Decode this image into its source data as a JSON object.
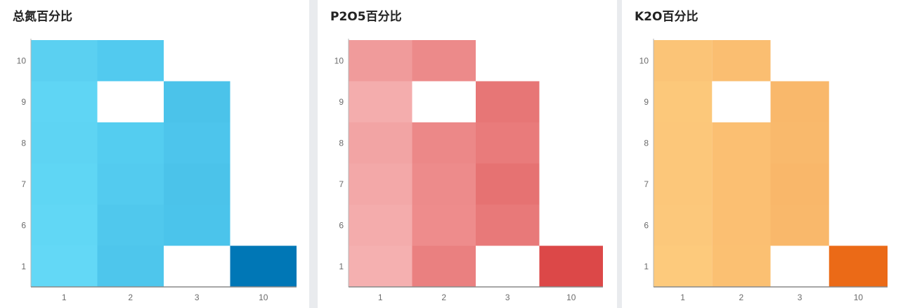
{
  "panels": [
    {
      "title": "总氮百分比",
      "accent": "#49c4ea",
      "chart_data": {
        "type": "heatmap",
        "title": "总氮百分比",
        "x_categories": [
          "1",
          "2",
          "3",
          "10"
        ],
        "y_categories": [
          "1",
          "6",
          "7",
          "8",
          "9",
          "10"
        ],
        "grid": false,
        "cells": [
          {
            "x": "1",
            "y": "10",
            "color": "#5bd0f1"
          },
          {
            "x": "2",
            "y": "10",
            "color": "#52caef"
          },
          {
            "x": "1",
            "y": "9",
            "color": "#5fd5f4"
          },
          {
            "x": "3",
            "y": "9",
            "color": "#4bc3ea"
          },
          {
            "x": "1",
            "y": "8",
            "color": "#5ed4f3"
          },
          {
            "x": "2",
            "y": "8",
            "color": "#54cdf0"
          },
          {
            "x": "3",
            "y": "8",
            "color": "#4dc5ec"
          },
          {
            "x": "1",
            "y": "7",
            "color": "#5fd6f4"
          },
          {
            "x": "2",
            "y": "7",
            "color": "#53cbef"
          },
          {
            "x": "3",
            "y": "7",
            "color": "#4bc3ea"
          },
          {
            "x": "1",
            "y": "6",
            "color": "#61d7f5"
          },
          {
            "x": "2",
            "y": "6",
            "color": "#50c8ed"
          },
          {
            "x": "3",
            "y": "6",
            "color": "#4bc4eb"
          },
          {
            "x": "1",
            "y": "1",
            "color": "#63d8f6"
          },
          {
            "x": "2",
            "y": "1",
            "color": "#4ec6ec"
          },
          {
            "x": "10",
            "y": "1",
            "color": "#0077b6"
          }
        ]
      }
    },
    {
      "title": "P2O5百分比",
      "accent": "#e56d6d",
      "chart_data": {
        "type": "heatmap",
        "title": "P2O5百分比",
        "x_categories": [
          "1",
          "2",
          "3",
          "10"
        ],
        "y_categories": [
          "1",
          "6",
          "7",
          "8",
          "9",
          "10"
        ],
        "grid": false,
        "cells": [
          {
            "x": "1",
            "y": "10",
            "color": "#f09b9b"
          },
          {
            "x": "2",
            "y": "10",
            "color": "#ec8a8a"
          },
          {
            "x": "1",
            "y": "9",
            "color": "#f4adad"
          },
          {
            "x": "3",
            "y": "9",
            "color": "#e77676"
          },
          {
            "x": "1",
            "y": "8",
            "color": "#f2a4a4"
          },
          {
            "x": "2",
            "y": "8",
            "color": "#ec8888"
          },
          {
            "x": "3",
            "y": "8",
            "color": "#e97b7b"
          },
          {
            "x": "1",
            "y": "7",
            "color": "#f3a8a8"
          },
          {
            "x": "2",
            "y": "7",
            "color": "#ed8b8b"
          },
          {
            "x": "3",
            "y": "7",
            "color": "#e67272"
          },
          {
            "x": "1",
            "y": "6",
            "color": "#f4acac"
          },
          {
            "x": "2",
            "y": "6",
            "color": "#ee8c8c"
          },
          {
            "x": "3",
            "y": "6",
            "color": "#e87979"
          },
          {
            "x": "1",
            "y": "1",
            "color": "#f5b0b0"
          },
          {
            "x": "2",
            "y": "1",
            "color": "#ea8080"
          },
          {
            "x": "10",
            "y": "1",
            "color": "#dc4848"
          }
        ]
      }
    },
    {
      "title": "K2O百分比",
      "accent": "#f8b466",
      "chart_data": {
        "type": "heatmap",
        "title": "K2O百分比",
        "x_categories": [
          "1",
          "2",
          "3",
          "10"
        ],
        "y_categories": [
          "1",
          "6",
          "7",
          "8",
          "9",
          "10"
        ],
        "grid": false,
        "cells": [
          {
            "x": "1",
            "y": "10",
            "color": "#fbc477"
          },
          {
            "x": "2",
            "y": "10",
            "color": "#fabe71"
          },
          {
            "x": "1",
            "y": "9",
            "color": "#fcc87a"
          },
          {
            "x": "3",
            "y": "9",
            "color": "#f9b86b"
          },
          {
            "x": "1",
            "y": "8",
            "color": "#fcc77a"
          },
          {
            "x": "2",
            "y": "8",
            "color": "#fbbf72"
          },
          {
            "x": "3",
            "y": "8",
            "color": "#f9b96c"
          },
          {
            "x": "1",
            "y": "7",
            "color": "#fcc77a"
          },
          {
            "x": "2",
            "y": "7",
            "color": "#fbbf72"
          },
          {
            "x": "3",
            "y": "7",
            "color": "#f9b76a"
          },
          {
            "x": "1",
            "y": "6",
            "color": "#fcc87b"
          },
          {
            "x": "2",
            "y": "6",
            "color": "#fbbf72"
          },
          {
            "x": "3",
            "y": "6",
            "color": "#f9b86b"
          },
          {
            "x": "1",
            "y": "1",
            "color": "#fdca7c"
          },
          {
            "x": "2",
            "y": "1",
            "color": "#fbc072"
          },
          {
            "x": "10",
            "y": "1",
            "color": "#eb6a17"
          }
        ]
      }
    }
  ]
}
